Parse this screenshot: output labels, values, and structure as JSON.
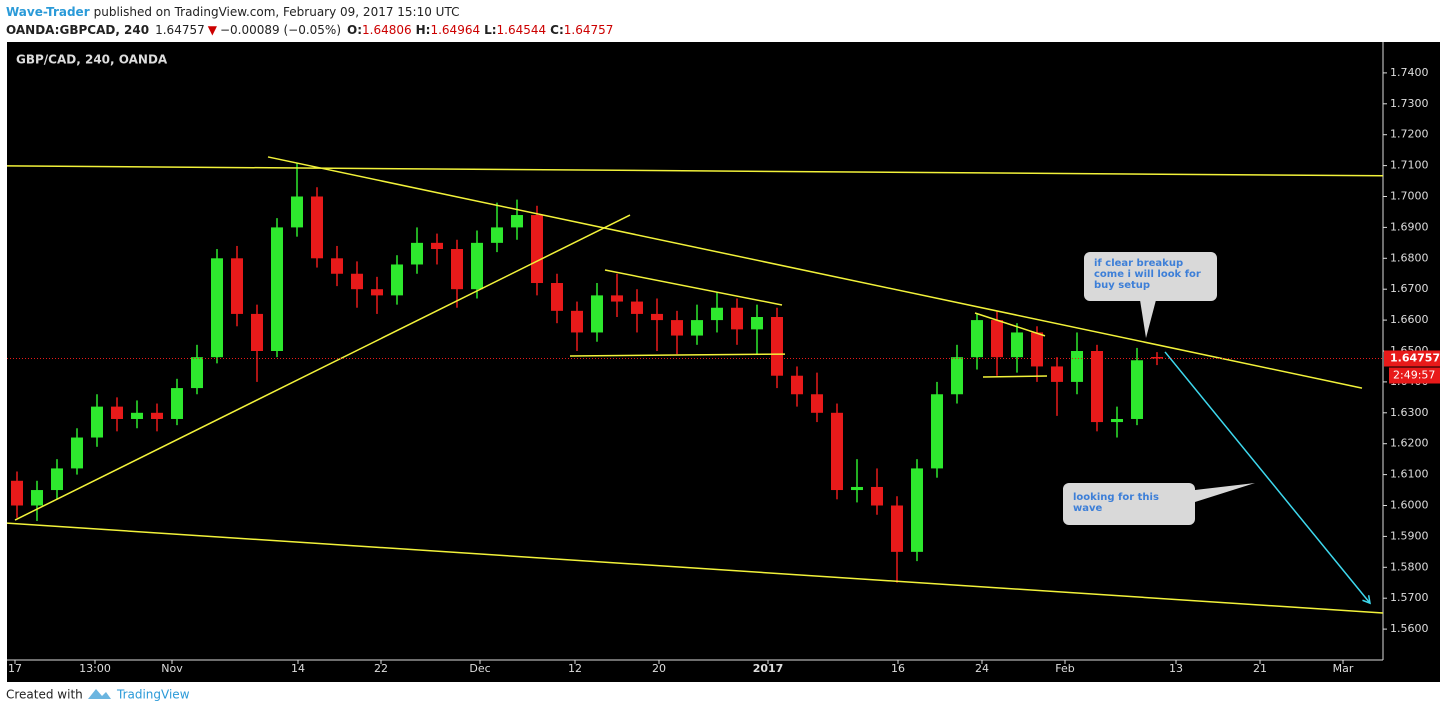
{
  "header": {
    "author": "Wave-Trader",
    "published": "published on TradingView.com, February 09, 2017 15:10 UTC",
    "symbol": "OANDA:GBPCAD, 240",
    "price": "1.64757",
    "arrow": "▼",
    "change": "−0.00089 (−0.05%)",
    "o_label": "O:",
    "o_value": "1.64806",
    "h_label": "H:",
    "h_value": "1.64964",
    "l_label": "L:",
    "l_value": "1.64544",
    "c_label": "C:",
    "c_value": "1.64757"
  },
  "footer": {
    "text": "Created with",
    "brand": "TradingView"
  },
  "chart_data": {
    "type": "candlestick",
    "legend": "GBP/CAD, 240, OANDA",
    "up_color": "#2ee82e",
    "down_color": "#e81a1a",
    "open": [
      1.608,
      1.6,
      1.605,
      1.612,
      1.622,
      1.632,
      1.628,
      1.63,
      1.628,
      1.638,
      1.648,
      1.68,
      1.662,
      1.65,
      1.69,
      1.7,
      1.68,
      1.675,
      1.67,
      1.668,
      1.678,
      1.685,
      1.683,
      1.67,
      1.685,
      1.69,
      1.694,
      1.672,
      1.663,
      1.656,
      1.668,
      1.666,
      1.662,
      1.66,
      1.655,
      1.66,
      1.664,
      1.657,
      1.661,
      1.642,
      1.636,
      1.63,
      1.605,
      1.606,
      1.6,
      1.585,
      1.612,
      1.636,
      1.648,
      1.66,
      1.648,
      1.656,
      1.645,
      1.64,
      1.65,
      1.627,
      1.628,
      1.64806
    ],
    "high": [
      1.611,
      1.608,
      1.615,
      1.625,
      1.636,
      1.635,
      1.634,
      1.633,
      1.641,
      1.652,
      1.683,
      1.684,
      1.665,
      1.693,
      1.711,
      1.703,
      1.684,
      1.679,
      1.674,
      1.681,
      1.69,
      1.688,
      1.686,
      1.689,
      1.698,
      1.699,
      1.697,
      1.675,
      1.666,
      1.672,
      1.675,
      1.67,
      1.667,
      1.663,
      1.665,
      1.669,
      1.667,
      1.665,
      1.664,
      1.645,
      1.643,
      1.633,
      1.615,
      1.612,
      1.603,
      1.615,
      1.64,
      1.652,
      1.662,
      1.663,
      1.659,
      1.658,
      1.648,
      1.656,
      1.652,
      1.632,
      1.651,
      1.64964
    ],
    "low": [
      1.596,
      1.595,
      1.602,
      1.61,
      1.619,
      1.624,
      1.625,
      1.624,
      1.626,
      1.636,
      1.646,
      1.658,
      1.64,
      1.648,
      1.687,
      1.677,
      1.671,
      1.664,
      1.662,
      1.665,
      1.675,
      1.678,
      1.664,
      1.667,
      1.682,
      1.686,
      1.668,
      1.659,
      1.65,
      1.653,
      1.661,
      1.656,
      1.65,
      1.649,
      1.652,
      1.656,
      1.652,
      1.649,
      1.638,
      1.632,
      1.627,
      1.602,
      1.601,
      1.597,
      1.575,
      1.582,
      1.609,
      1.633,
      1.644,
      1.642,
      1.643,
      1.64,
      1.629,
      1.636,
      1.624,
      1.622,
      1.626,
      1.64544
    ],
    "close": [
      1.6,
      1.605,
      1.612,
      1.622,
      1.632,
      1.628,
      1.63,
      1.628,
      1.638,
      1.648,
      1.68,
      1.662,
      1.65,
      1.69,
      1.7,
      1.68,
      1.675,
      1.67,
      1.668,
      1.678,
      1.685,
      1.683,
      1.67,
      1.685,
      1.69,
      1.694,
      1.672,
      1.663,
      1.656,
      1.668,
      1.666,
      1.662,
      1.66,
      1.655,
      1.66,
      1.664,
      1.657,
      1.661,
      1.642,
      1.636,
      1.63,
      1.605,
      1.606,
      1.6,
      1.585,
      1.612,
      1.636,
      1.648,
      1.66,
      1.648,
      1.656,
      1.645,
      1.64,
      1.65,
      1.627,
      1.628,
      1.647,
      1.64757
    ],
    "ylim": [
      1.55,
      1.75
    ],
    "yticks": [
      {
        "value": 1.56,
        "label": "1.5600"
      },
      {
        "value": 1.57,
        "label": "1.5700"
      },
      {
        "value": 1.58,
        "label": "1.5800"
      },
      {
        "value": 1.59,
        "label": "1.5900"
      },
      {
        "value": 1.6,
        "label": "1.6000"
      },
      {
        "value": 1.61,
        "label": "1.6100"
      },
      {
        "value": 1.62,
        "label": "1.6200"
      },
      {
        "value": 1.63,
        "label": "1.6300"
      },
      {
        "value": 1.64,
        "label": "1.6400"
      },
      {
        "value": 1.65,
        "label": "1.6500"
      },
      {
        "value": 1.66,
        "label": "1.6600"
      },
      {
        "value": 1.67,
        "label": "1.6700"
      },
      {
        "value": 1.68,
        "label": "1.6800"
      },
      {
        "value": 1.69,
        "label": "1.6900"
      },
      {
        "value": 1.7,
        "label": "1.7000"
      },
      {
        "value": 1.71,
        "label": "1.7100"
      },
      {
        "value": 1.72,
        "label": "1.7200"
      },
      {
        "value": 1.73,
        "label": "1.7300"
      },
      {
        "value": 1.74,
        "label": "1.7400"
      }
    ],
    "xlim": [
      -0.5,
      68.3
    ],
    "xticks": [
      {
        "value": -0.1,
        "label": "17"
      },
      {
        "value": 3.9,
        "label": "13:00"
      },
      {
        "value": 7.75,
        "label": "Nov"
      },
      {
        "value": 14.05,
        "label": "14"
      },
      {
        "value": 18.2,
        "label": "22"
      },
      {
        "value": 23.15,
        "label": "Dec"
      },
      {
        "value": 27.9,
        "label": "12"
      },
      {
        "value": 32.1,
        "label": "20"
      },
      {
        "value": 37.55,
        "label": "2017"
      },
      {
        "value": 44.05,
        "label": "16"
      },
      {
        "value": 48.25,
        "label": "24"
      },
      {
        "value": 52.4,
        "label": "Feb"
      },
      {
        "value": 57.95,
        "label": "13"
      },
      {
        "value": 62.15,
        "label": "21"
      },
      {
        "value": 66.3,
        "label": "Mar"
      }
    ],
    "last_price": {
      "value": 1.64757,
      "label": "1.64757"
    },
    "countdown": "2:49:57",
    "drawings": [
      {
        "color": "#f2f23a",
        "x": [
          -0.5,
          68.3
        ],
        "y": [
          1.7099,
          1.7067
        ]
      },
      {
        "color": "#f2f23a",
        "x": [
          12.55,
          67.25
        ],
        "y": [
          1.7128,
          1.638
        ]
      },
      {
        "color": "#f2f23a",
        "x": [
          -0.1,
          30.65
        ],
        "y": [
          1.5953,
          1.694
        ]
      },
      {
        "color": "#f2f23a",
        "x": [
          -0.5,
          68.3
        ],
        "y": [
          1.5943,
          1.5652
        ]
      },
      {
        "color": "#f2f23a",
        "x": [
          29.4,
          38.25
        ],
        "y": [
          1.6762,
          1.6649
        ]
      },
      {
        "color": "#f2f23a",
        "x": [
          27.65,
          38.4
        ],
        "y": [
          1.6484,
          1.649
        ]
      },
      {
        "color": "#f2f23a",
        "x": [
          47.9,
          51.4
        ],
        "y": [
          1.6623,
          1.6549
        ]
      },
      {
        "color": "#f2f23a",
        "x": [
          48.3,
          51.5
        ],
        "y": [
          1.6416,
          1.6419
        ]
      }
    ],
    "arrow": {
      "color": "#3ed8ee",
      "x": [
        57.4,
        67.65
      ],
      "y": [
        1.6497,
        1.5684
      ]
    },
    "annotations": [
      "if clear breakup come i will look for buy setup",
      "looking for this wave"
    ]
  }
}
